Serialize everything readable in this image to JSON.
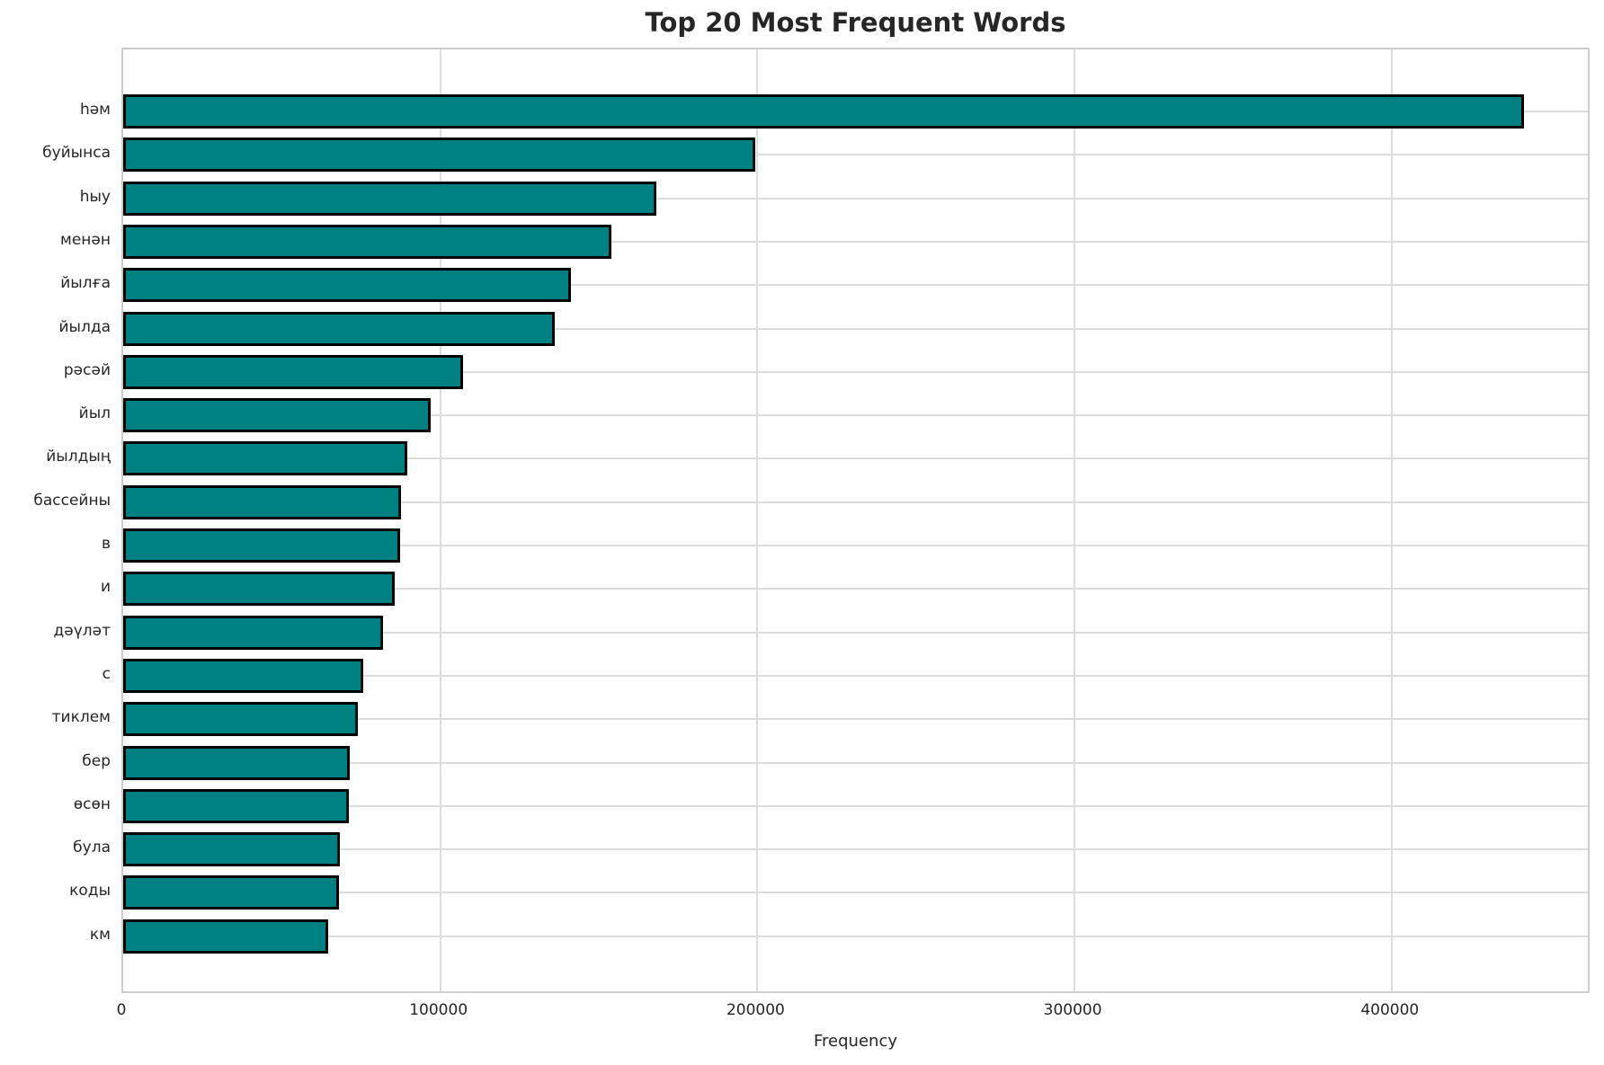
{
  "chart_data": {
    "type": "bar",
    "orientation": "horizontal",
    "title": "Top 20 Most Frequent Words",
    "xlabel": "Frequency",
    "ylabel": "",
    "categories": [
      "һәм",
      "буйынса",
      "һыу",
      "менән",
      "йылға",
      "йылда",
      "рәсәй",
      "йыл",
      "йылдың",
      "бассейны",
      "в",
      "и",
      "дәүләт",
      "с",
      "тиклем",
      "бер",
      "өсөн",
      "була",
      "коды",
      "км"
    ],
    "values": [
      441700,
      199200,
      168200,
      154000,
      141300,
      136200,
      107200,
      97000,
      89600,
      87600,
      87400,
      85600,
      82000,
      75700,
      74000,
      71500,
      71100,
      68400,
      68000,
      64600
    ],
    "xlim": [
      0,
      463000
    ],
    "xticks": {
      "values": [
        0,
        100000,
        200000,
        300000,
        400000
      ],
      "labels": [
        "0",
        "100000",
        "200000",
        "300000",
        "400000"
      ]
    },
    "grid": true,
    "legend": false,
    "bar_color": "#008080",
    "bar_edge_color": "#000000",
    "grid_color": "#dcdcdc",
    "spine_color": "#cccccc",
    "text_color": "#262626",
    "background_color": "#ffffff"
  }
}
